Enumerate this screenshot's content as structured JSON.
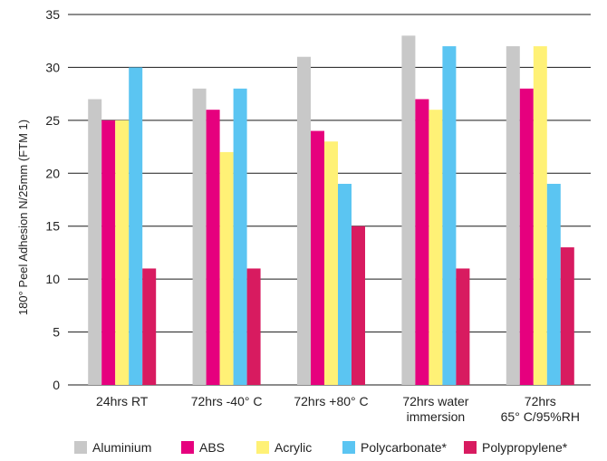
{
  "chart_data": {
    "type": "bar",
    "title": "",
    "xlabel": "",
    "ylabel": "180° Peel Adhesion N/25mm (FTM 1)",
    "ylim": [
      0,
      35
    ],
    "yticks": [
      0,
      5,
      10,
      15,
      20,
      25,
      30,
      35
    ],
    "grid": true,
    "legend_position": "bottom",
    "categories": [
      [
        "24hrs RT"
      ],
      [
        "72hrs -40° C"
      ],
      [
        "72hrs +80° C"
      ],
      [
        "72hrs water",
        "immersion"
      ],
      [
        "72hrs",
        "65° C/95%RH"
      ]
    ],
    "series": [
      {
        "name": "Aluminium",
        "color": "#c8c8c8",
        "values": [
          27,
          28,
          31,
          33,
          32
        ]
      },
      {
        "name": "ABS",
        "color": "#e6007e",
        "values": [
          25,
          26,
          24,
          27,
          28
        ]
      },
      {
        "name": "Acrylic",
        "color": "#fff176",
        "values": [
          25,
          22,
          23,
          26,
          32
        ]
      },
      {
        "name": "Polycarbonate*",
        "color": "#5bc5f2",
        "values": [
          30,
          28,
          19,
          32,
          19
        ]
      },
      {
        "name": "Polypropylene*",
        "color": "#d81b60",
        "values": [
          11,
          11,
          15,
          11,
          13
        ]
      }
    ]
  }
}
